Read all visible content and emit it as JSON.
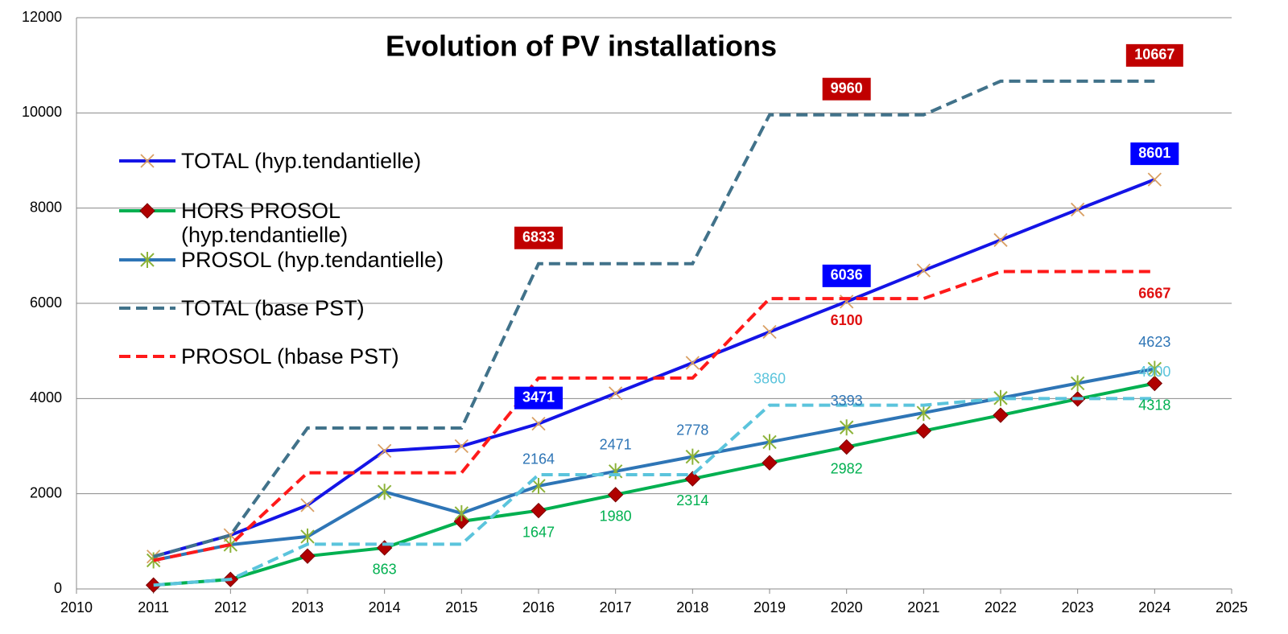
{
  "chart_data": {
    "type": "line",
    "title": "Evolution of PV installations",
    "x": [
      2011,
      2012,
      2013,
      2014,
      2015,
      2016,
      2017,
      2018,
      2019,
      2020,
      2021,
      2022,
      2023,
      2024
    ],
    "xlim": [
      2010,
      2025
    ],
    "xticks": [
      2010,
      2011,
      2012,
      2013,
      2014,
      2015,
      2016,
      2017,
      2018,
      2019,
      2020,
      2021,
      2022,
      2023,
      2024,
      2025
    ],
    "ylim": [
      0,
      12000
    ],
    "yticks": [
      0,
      2000,
      4000,
      6000,
      8000,
      10000,
      12000
    ],
    "grid": true,
    "legend": "left",
    "series": [
      {
        "name": "TOTAL (hyp.tendantielle)",
        "color": "#1414e6",
        "dash": "solid",
        "marker": "x",
        "marker_color": "#d9a064",
        "values": [
          680,
          1130,
          1760,
          2900,
          3000,
          3471,
          4110,
          4750,
          5400,
          6036,
          6690,
          7330,
          7970,
          8601
        ],
        "data_labels": [
          5,
          9,
          13
        ],
        "label_style": "boxed",
        "label_color": "#0000ff",
        "label_position": "above"
      },
      {
        "name": "HORS PROSOL (hyp.tendantielle)",
        "color": "#00b050",
        "dash": "solid",
        "marker": "diamond",
        "marker_color": "#b00000",
        "values": [
          80,
          200,
          690,
          863,
          1420,
          1647,
          1980,
          2314,
          2650,
          2982,
          3320,
          3650,
          3990,
          4318
        ],
        "data_labels": [
          3,
          5,
          6,
          7,
          9,
          13
        ],
        "label_style": "text",
        "label_color": "#00b050",
        "label_position": "below"
      },
      {
        "name": "PROSOL (hyp.tendantielle)",
        "color": "#2e75b6",
        "dash": "solid",
        "marker": "asterisk",
        "marker_color": "#8db33a",
        "values": [
          600,
          930,
          1100,
          2040,
          1590,
          2164,
          2471,
          2778,
          3085,
          3393,
          3700,
          4010,
          4320,
          4623
        ],
        "data_labels": [
          5,
          6,
          7,
          9,
          13
        ],
        "label_style": "text",
        "label_color": "#2e75b6",
        "label_position": "above"
      },
      {
        "name": "TOTAL (base PST)",
        "color": "#41728a",
        "dash": "dashed",
        "marker": "none",
        "values": [
          680,
          1130,
          3380,
          3380,
          3380,
          6833,
          6833,
          6833,
          9960,
          9960,
          9960,
          10667,
          10667,
          10667
        ],
        "data_labels": [
          5,
          9,
          13
        ],
        "label_style": "boxed",
        "label_color": "#c00000",
        "label_position": "above"
      },
      {
        "name": "PROSOL (hbase PST)",
        "color": "#ff1a1a",
        "dash": "dashed",
        "marker": "none",
        "values": [
          600,
          930,
          2440,
          2440,
          2440,
          4430,
          4430,
          4430,
          6100,
          6100,
          6100,
          6667,
          6667,
          6667
        ],
        "data_labels": [
          9,
          13
        ],
        "label_style": "bold",
        "label_color": "#e01010",
        "label_position": "below"
      },
      {
        "color": "#5bc4dc",
        "dash": "dashed",
        "marker": "none",
        "values": [
          80,
          200,
          940,
          940,
          940,
          2400,
          2400,
          2400,
          3860,
          3860,
          3860,
          4000,
          4000,
          4000
        ],
        "data_labels": [
          8,
          13
        ],
        "label_style": "text",
        "label_color": "#5bc4dc",
        "label_position": "above"
      }
    ]
  }
}
